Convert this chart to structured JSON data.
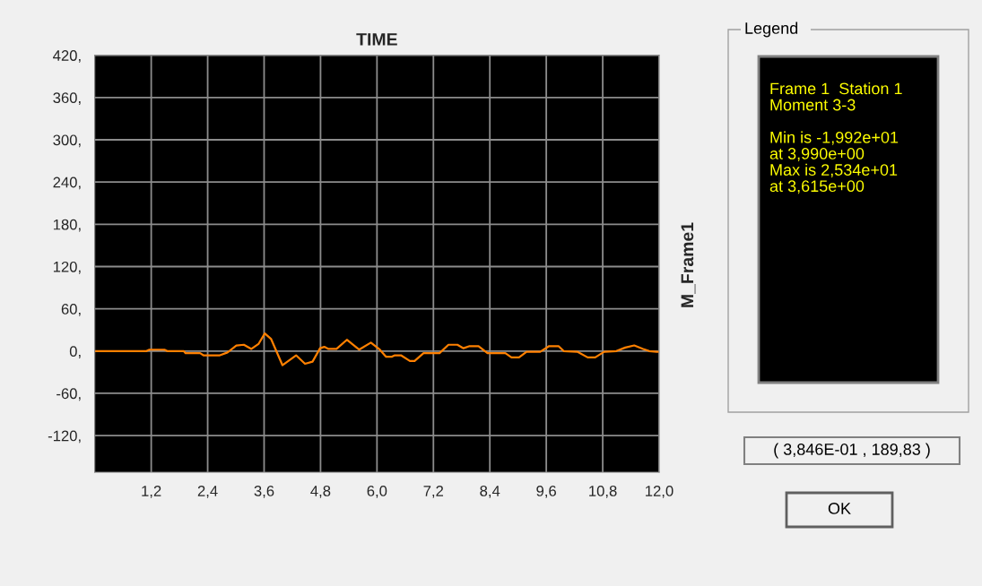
{
  "chart_data": {
    "type": "line",
    "title": "TIME",
    "ylabel": "M_Frame1",
    "x": [
      0,
      1.1,
      1.16,
      1.48,
      1.54,
      1.89,
      1.93,
      2.24,
      2.31,
      2.66,
      2.82,
      3.01,
      3.17,
      3.33,
      3.48,
      3.615,
      3.75,
      3.99,
      4.28,
      4.47,
      4.63,
      4.79,
      4.88,
      4.97,
      5.14,
      5.36,
      5.62,
      5.87,
      6.06,
      6.19,
      6.32,
      6.38,
      6.51,
      6.7,
      6.8,
      6.99,
      7.33,
      7.52,
      7.71,
      7.84,
      7.97,
      8.16,
      8.35,
      8.73,
      8.86,
      9.02,
      9.18,
      9.47,
      9.66,
      9.86,
      9.97,
      10.26,
      10.48,
      10.64,
      10.83,
      11.09,
      11.28,
      11.47,
      11.66,
      11.79,
      11.95,
      12.0
    ],
    "series": [
      {
        "color": "#ff8000",
        "values": [
          0,
          0,
          2,
          2,
          0,
          0,
          -3,
          -3,
          -6,
          -6,
          -2,
          8,
          9,
          3,
          10,
          25,
          17,
          -20,
          -6,
          -18,
          -15,
          4,
          6,
          3,
          3,
          16,
          2,
          12,
          2,
          -8,
          -8,
          -6,
          -6,
          -14,
          -14,
          -3,
          -3,
          9,
          9,
          4,
          7,
          7,
          -3,
          -3,
          -9,
          -9,
          -1,
          -1,
          7,
          7,
          0,
          -1,
          -9,
          -9,
          -1,
          0,
          5,
          8,
          3,
          0,
          -1,
          -1
        ]
      }
    ],
    "xlim": [
      0,
      12.0
    ],
    "xticks": [
      {
        "value": 1.2,
        "label": "1,2"
      },
      {
        "value": 2.4,
        "label": "2,4"
      },
      {
        "value": 3.6,
        "label": "3,6"
      },
      {
        "value": 4.8,
        "label": "4,8"
      },
      {
        "value": 6.0,
        "label": "6,0"
      },
      {
        "value": 7.2,
        "label": "7,2"
      },
      {
        "value": 8.4,
        "label": "8,4"
      },
      {
        "value": 9.6,
        "label": "9,6"
      },
      {
        "value": 10.8,
        "label": "10,8"
      },
      {
        "value": 12.0,
        "label": "12,0"
      }
    ],
    "ylim": [
      -172,
      420
    ],
    "yticks": [
      {
        "value": -120,
        "label": "-120,"
      },
      {
        "value": -60,
        "label": "-60,"
      },
      {
        "value": 0,
        "label": "0,"
      },
      {
        "value": 60,
        "label": "60,"
      },
      {
        "value": 120,
        "label": "120,"
      },
      {
        "value": 180,
        "label": "180,"
      },
      {
        "value": 240,
        "label": "240,"
      },
      {
        "value": 300,
        "label": "300,"
      },
      {
        "value": 360,
        "label": "360,"
      },
      {
        "value": 420,
        "label": "420,"
      }
    ],
    "grid": true,
    "marker": "none",
    "line_style": "solid",
    "legend": false,
    "annotations": [
      "Legend",
      "Frame 1  Station 1\nMoment 3-3\n\nMin is -1,992e+01\nat 3,990e+00\nMax is 2,534e+01\nat 3,615e+00",
      "( 3,846E-01 , 189,83 )",
      "OK"
    ]
  }
}
